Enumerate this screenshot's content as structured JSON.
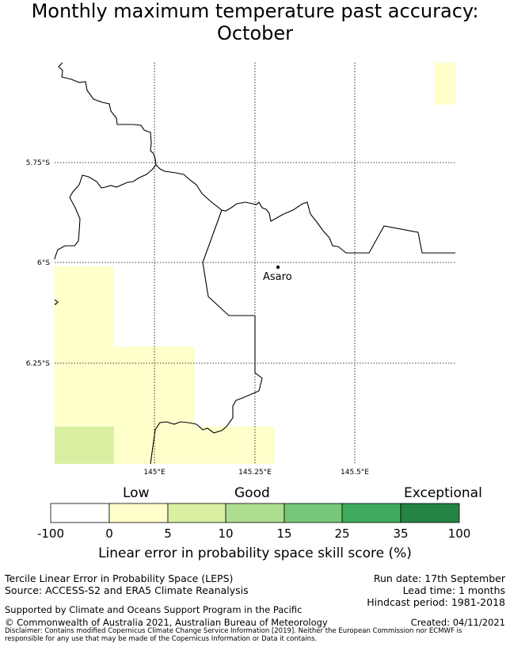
{
  "title_line1": "Monthly maximum temperature past accuracy:",
  "title_line2": "October",
  "map": {
    "lat_labels": [
      "5.75°S",
      "6°S",
      "6.25°S"
    ],
    "lon_labels": [
      "145°E",
      "145.25°E",
      "145.5°E"
    ],
    "location": "Asaro",
    "cell_colors": {
      "low": "#ffffcc",
      "mid": "#d9f0a3"
    }
  },
  "colorbar": {
    "categories": [
      "Low",
      "Good",
      "Exceptional"
    ],
    "ticks": [
      "-100",
      "0",
      "5",
      "10",
      "15",
      "25",
      "35",
      "100"
    ],
    "colors": [
      "#ffffff",
      "#ffffcc",
      "#d9f0a3",
      "#addd8e",
      "#78c679",
      "#41ab5d",
      "#238443"
    ],
    "label": "Linear error in probability space skill score (%)"
  },
  "footer": {
    "left1": "Tercile Linear Error in Probability Space (LEPS)",
    "left2": "Source: ACCESS-S2 and ERA5 Climate Reanalysis",
    "run_date": "Run date: 17th September",
    "lead_time": "Lead time: 1 months",
    "hindcast": "Hindcast period: 1981-2018",
    "supported": "Supported by Climate and Oceans Support Program in the Pacific",
    "copyright": "© Commonwealth of Australia 2021, Australian Bureau of Meteorology",
    "created": "Created: 04/11/2021",
    "disclaimer1": "Disclaimer: Contains modified Copernicus Climate Change Service Information [2019]. Neither the European Commission nor ECMWF is",
    "disclaimer2": "responsible for any use that may be made of the Copernicus Information or Data it contains."
  }
}
